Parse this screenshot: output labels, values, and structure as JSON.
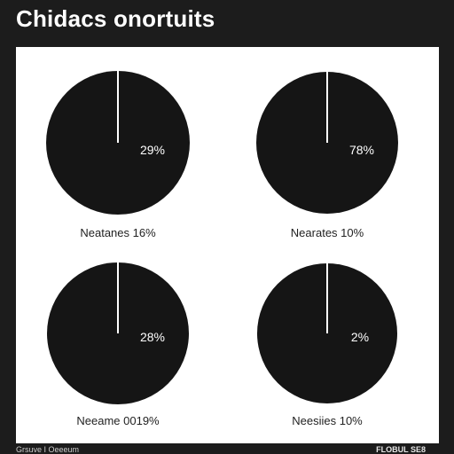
{
  "title": "Chidacs onortuits",
  "footer": {
    "left": "Grsuve I Oeeeum",
    "right": "FLOBUL SE8"
  },
  "colors": {
    "background": "#1c1c1c",
    "panel": "#ffffff",
    "pie_fill": "#151515",
    "divider": "#ffffff",
    "label_on_pie": "#ffffff",
    "caption": "#222222"
  },
  "chart_data": [
    {
      "type": "pie",
      "percent_label": "29%",
      "caption": "Neatanes 16%",
      "slices": [
        {
          "value": 100
        }
      ],
      "divider_angle_deg": 0
    },
    {
      "type": "pie",
      "percent_label": "78%",
      "caption": "Nearates 10%",
      "slices": [
        {
          "value": 100
        }
      ],
      "divider_angle_deg": 0
    },
    {
      "type": "pie",
      "percent_label": "28%",
      "caption": "Neeame 0019%",
      "slices": [
        {
          "value": 100
        }
      ],
      "divider_angle_deg": 0
    },
    {
      "type": "pie",
      "percent_label": "2%",
      "caption": "Neesiies 10%",
      "slices": [
        {
          "value": 100
        }
      ],
      "divider_angle_deg": 0
    }
  ]
}
